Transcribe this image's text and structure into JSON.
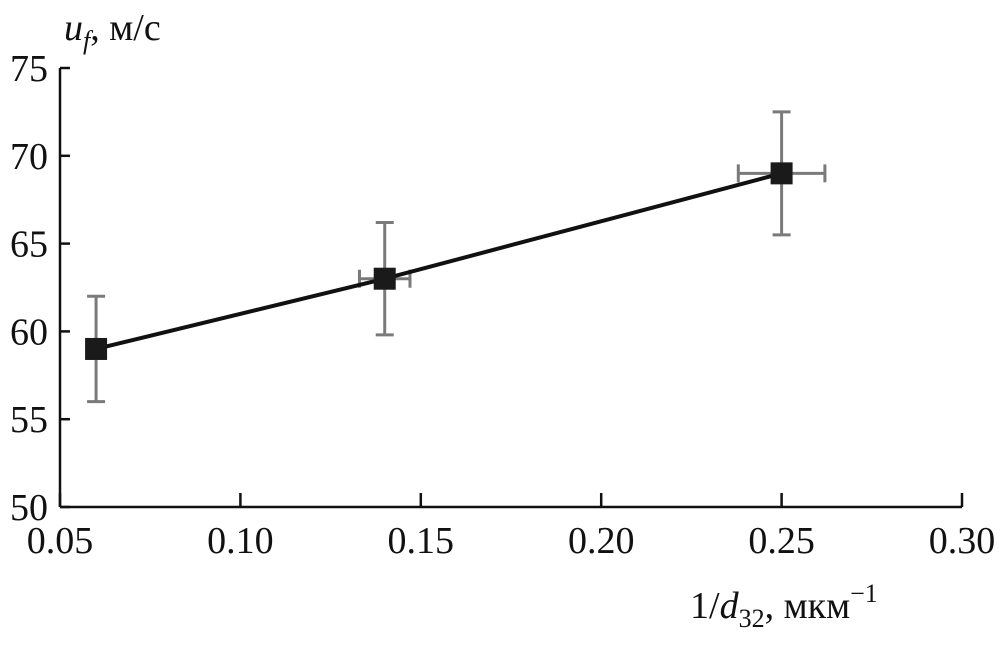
{
  "chart_data": {
    "type": "scatter",
    "title": "",
    "xlabel": {
      "prefix": "1/",
      "var": "d",
      "sub": "32",
      "unit": ", мкм",
      "sup": "−1"
    },
    "ylabel": {
      "var": "u",
      "sub": "f",
      "unit": ", м/с"
    },
    "xlim": [
      0.05,
      0.3
    ],
    "ylim": [
      50,
      75
    ],
    "xticks": [
      "0.05",
      "0.10",
      "0.15",
      "0.20",
      "0.25",
      "0.30"
    ],
    "yticks": [
      "50",
      "55",
      "60",
      "65",
      "70",
      "75"
    ],
    "grid": false,
    "series": [
      {
        "x": [
          0.06,
          0.14,
          0.25
        ],
        "y": [
          59,
          63,
          69
        ],
        "yerr": [
          3.0,
          3.2,
          3.5
        ],
        "xerr": [
          0.0,
          0.007,
          0.012
        ],
        "connected": true
      }
    ],
    "colors": {
      "line": "#111111",
      "marker": "#1a1a1a",
      "errorbar": "#7a7a7a"
    }
  }
}
